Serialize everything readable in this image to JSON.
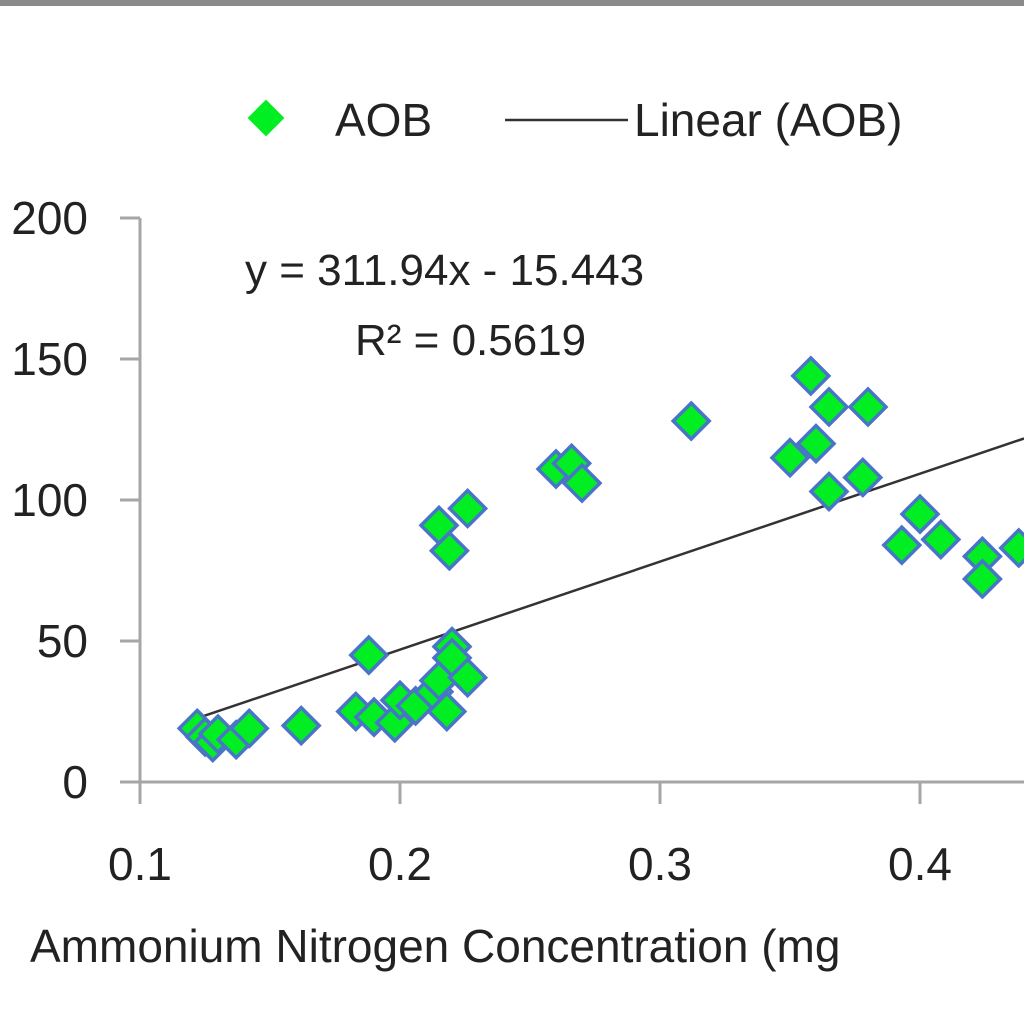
{
  "chart_data": {
    "type": "scatter",
    "title": "",
    "xlabel": "Ammonium Nitrogen Concentration (mg",
    "ylabel": "",
    "xlim": [
      0.1,
      0.45
    ],
    "ylim": [
      0,
      200
    ],
    "x_ticks": [
      "0.1",
      "0.2",
      "0.3",
      "0.4"
    ],
    "y_ticks": [
      "0",
      "50",
      "100",
      "150",
      "200"
    ],
    "grid": false,
    "legend_position": "top",
    "legend": {
      "series_label": "AOB",
      "trend_label": "Linear (AOB)"
    },
    "trendline": {
      "equation": "y = 311.94x - 15.443",
      "r_squared": "R² = 0.5619",
      "slope": 311.94,
      "intercept": -15.443,
      "x_range": [
        0.122,
        0.44
      ]
    },
    "series": [
      {
        "name": "AOB",
        "points": [
          [
            0.122,
            19
          ],
          [
            0.125,
            16
          ],
          [
            0.128,
            14
          ],
          [
            0.13,
            17
          ],
          [
            0.137,
            15
          ],
          [
            0.142,
            19
          ],
          [
            0.162,
            20
          ],
          [
            0.183,
            25
          ],
          [
            0.188,
            45
          ],
          [
            0.19,
            23
          ],
          [
            0.198,
            21
          ],
          [
            0.2,
            29
          ],
          [
            0.206,
            27
          ],
          [
            0.213,
            32
          ],
          [
            0.215,
            36
          ],
          [
            0.215,
            91
          ],
          [
            0.218,
            25
          ],
          [
            0.219,
            82
          ],
          [
            0.22,
            48
          ],
          [
            0.22,
            44
          ],
          [
            0.226,
            37
          ],
          [
            0.226,
            97
          ],
          [
            0.26,
            111
          ],
          [
            0.266,
            113
          ],
          [
            0.27,
            106
          ],
          [
            0.312,
            128
          ],
          [
            0.35,
            115
          ],
          [
            0.358,
            144
          ],
          [
            0.36,
            120
          ],
          [
            0.365,
            133
          ],
          [
            0.365,
            103
          ],
          [
            0.378,
            108
          ],
          [
            0.38,
            133
          ],
          [
            0.393,
            84
          ],
          [
            0.4,
            95
          ],
          [
            0.408,
            86
          ],
          [
            0.424,
            80
          ],
          [
            0.424,
            72
          ],
          [
            0.438,
            83
          ]
        ]
      }
    ],
    "colors": {
      "marker_fill": "#00ee22",
      "marker_stroke": "#4a74c8",
      "trendline": "#333333",
      "axis": "#a6a6a6"
    }
  }
}
